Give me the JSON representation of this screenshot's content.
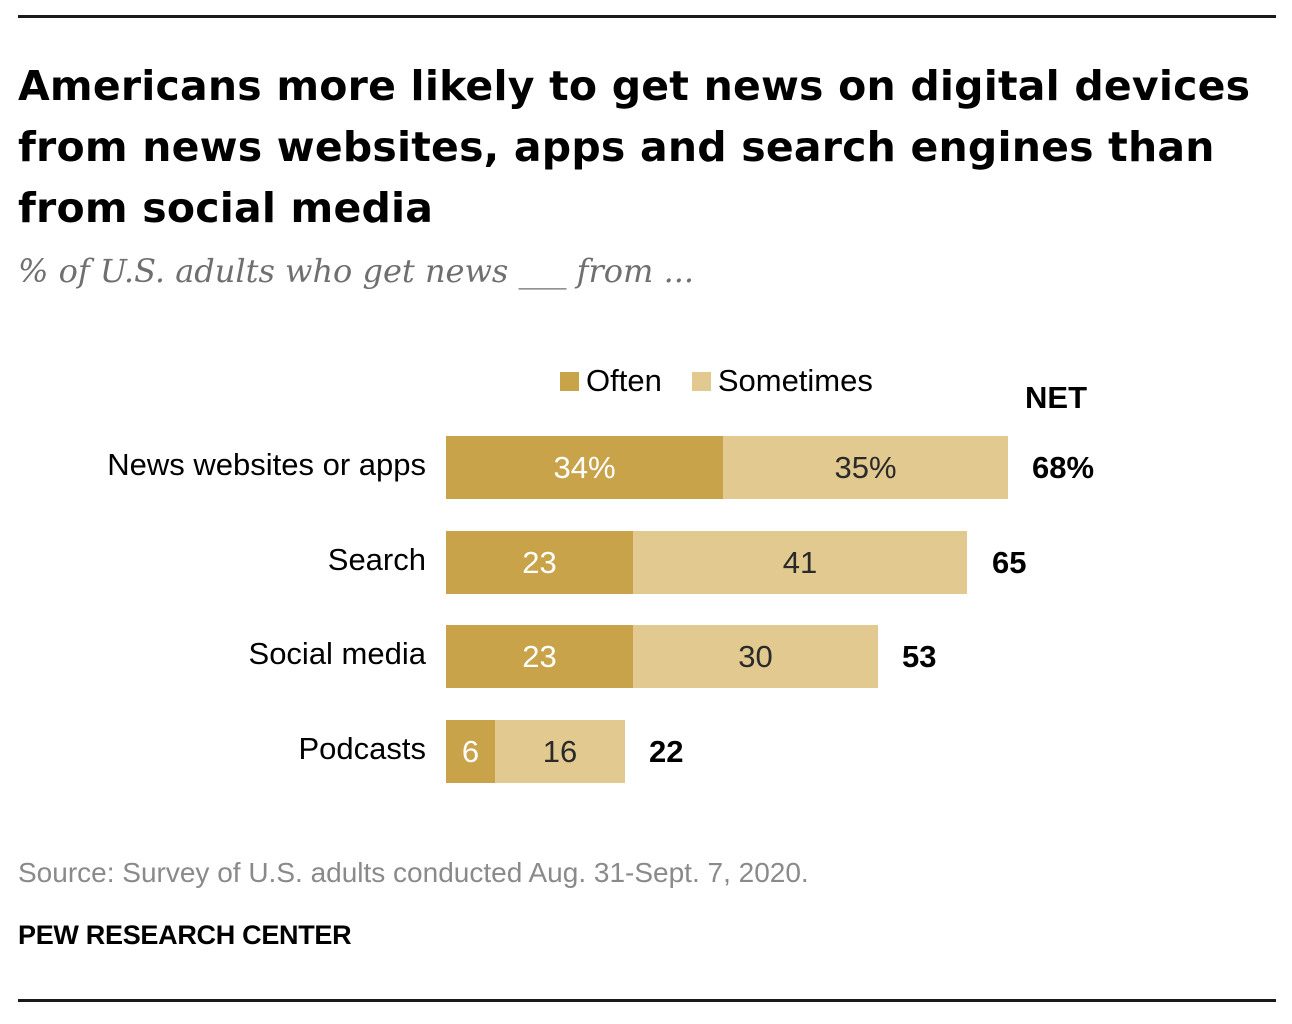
{
  "chart_data": {
    "type": "bar",
    "orientation": "horizontal",
    "stacked": true,
    "title": "Americans more likely to get news on digital devices from news websites, apps and search engines than from social media",
    "subtitle": "% of U.S. adults who get news ___ from ...",
    "categories": [
      "News websites or apps",
      "Search",
      "Social media",
      "Podcasts"
    ],
    "series": [
      {
        "name": "Often",
        "color": "#c9a349",
        "values": [
          34,
          23,
          23,
          6
        ],
        "labels": [
          "34%",
          "23",
          "23",
          "6"
        ]
      },
      {
        "name": "Sometimes",
        "color": "#e2c98f",
        "values": [
          35,
          41,
          30,
          16
        ],
        "labels": [
          "35%",
          "41",
          "30",
          "16"
        ]
      }
    ],
    "net": {
      "header": "NET",
      "values": [
        68,
        65,
        53,
        22
      ],
      "labels": [
        "68%",
        "65",
        "53",
        "22"
      ]
    },
    "legend_position": "top",
    "grid": false,
    "xlim": [
      0,
      100
    ]
  },
  "footer": {
    "source": "Source: Survey of U.S. adults conducted Aug. 31-Sept. 7, 2020.",
    "brand": "PEW RESEARCH CENTER"
  }
}
